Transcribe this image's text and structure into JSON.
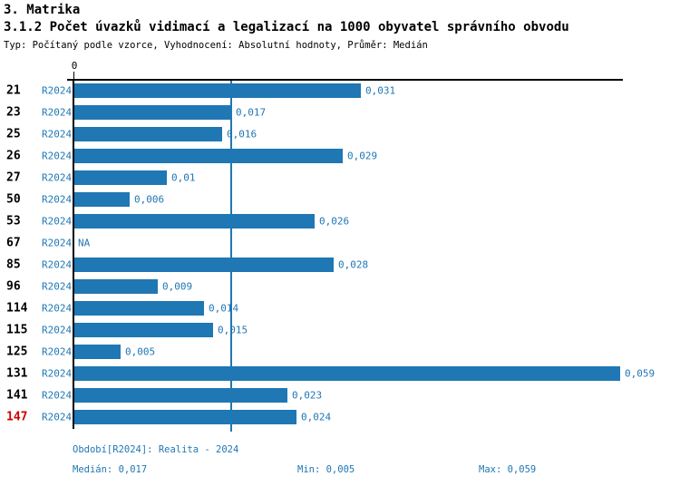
{
  "header": {
    "title": "3. Matrika",
    "subtitle": "3.1.2 Počet úvazků vidimací a legalizací na 1000 obyvatel správního obvodu",
    "meta": "Typ: Počítaný podle vzorce, Vyhodnocení: Absolutní hodnoty, Průměr: Medián"
  },
  "chart_data": {
    "type": "bar",
    "orientation": "horizontal",
    "title": "3.1.2 Počet úvazků vidimací a legalizací na 1000 obyvatel správního obvodu",
    "x_axis": {
      "position": "top",
      "zero_label": "0",
      "xlim": [
        0,
        0.059
      ],
      "grid": false
    },
    "categories": [
      "21",
      "23",
      "25",
      "26",
      "27",
      "50",
      "53",
      "67",
      "85",
      "96",
      "114",
      "115",
      "125",
      "131",
      "141",
      "147"
    ],
    "series": [
      {
        "name": "R2024",
        "values": [
          0.031,
          0.017,
          0.016,
          0.029,
          0.01,
          0.006,
          0.026,
          null,
          0.028,
          0.009,
          0.014,
          0.015,
          0.005,
          0.059,
          0.023,
          0.024
        ],
        "value_labels": [
          "0,031",
          "0,017",
          "0,016",
          "0,029",
          "0,01",
          "0,006",
          "0,026",
          "NA",
          "0,028",
          "0,009",
          "0,014",
          "0,015",
          "0,005",
          "0,059",
          "0,023",
          "0,024"
        ]
      }
    ],
    "na_label": "NA",
    "highlighted_category": "147",
    "median_line_value": 0.017,
    "legend": "none",
    "colors": {
      "bar": "#1f77b4",
      "blue_text": "#1f77b4",
      "highlight": "#cc0000",
      "axis": "#000000"
    }
  },
  "footer": {
    "period": "Období[R2024]: Realita - 2024",
    "median": "Medián: 0,017",
    "min": "Min: 0,005",
    "max": "Max: 0,059"
  }
}
